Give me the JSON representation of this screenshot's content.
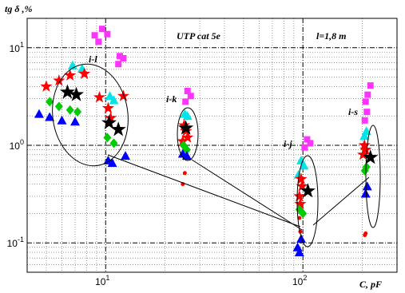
{
  "chart_data": {
    "type": "scatter",
    "ylabel": "tg δ ,%",
    "xlabel": "C, pF",
    "log_x": true,
    "log_y": true,
    "xlim": [
      4,
      300
    ],
    "ylim": [
      0.05,
      20
    ],
    "grid": true,
    "x_tick_labels": [
      {
        "x": 10,
        "base": "10",
        "exp": "1"
      },
      {
        "x": 100,
        "base": "10",
        "exp": "2"
      }
    ],
    "y_tick_labels": [
      {
        "y": 10,
        "base": "10",
        "exp": "1"
      },
      {
        "y": 1,
        "base": "10",
        "exp": "0"
      },
      {
        "y": 0.1,
        "base": "10",
        "exp": "-1"
      }
    ],
    "annotations": {
      "cable": "UTP cat 5e",
      "length": "l=1,8 m",
      "groups": [
        "i-l",
        "i-k",
        "i-j",
        "i-s"
      ]
    },
    "colors": {
      "magenta": "#ff33ff",
      "cyan": "#00e5e5",
      "red": "#ff0000",
      "green": "#00cc00",
      "blue": "#0000ff",
      "black": "#000000"
    },
    "series": [
      {
        "color": "magenta",
        "marker": "square",
        "points": [
          [
            9.6,
            15.6
          ],
          [
            10.2,
            13.8
          ],
          [
            8.8,
            13.4
          ],
          [
            9.2,
            11.5
          ],
          [
            11.8,
            8.2
          ],
          [
            12.3,
            7.8
          ],
          [
            11.6,
            6.8
          ],
          [
            26,
            3.6
          ],
          [
            27,
            3.2
          ],
          [
            25.4,
            2.8
          ],
          [
            105,
            1.15
          ],
          [
            109,
            1.05
          ],
          [
            102,
            0.95
          ],
          [
            220,
            4.1
          ],
          [
            213,
            3.3
          ],
          [
            208,
            2.8
          ],
          [
            211,
            2.2
          ],
          [
            206,
            1.8
          ]
        ]
      },
      {
        "color": "cyan",
        "marker": "triangle",
        "points": [
          [
            6.8,
            6.6
          ],
          [
            7.6,
            6.1
          ],
          [
            10.5,
            3.2
          ],
          [
            11,
            2.9
          ],
          [
            25.2,
            2.1
          ],
          [
            26,
            2.0
          ],
          [
            98,
            0.7
          ],
          [
            101,
            0.62
          ],
          [
            95,
            0.5
          ],
          [
            210,
            1.4
          ],
          [
            205,
            1.25
          ]
        ]
      },
      {
        "color": "red",
        "marker": "star",
        "points": [
          [
            5,
            4.0
          ],
          [
            5.8,
            4.6
          ],
          [
            6.6,
            5.2
          ],
          [
            7.8,
            5.4
          ],
          [
            9.3,
            3.1
          ],
          [
            10.3,
            2.4
          ],
          [
            10.6,
            1.9
          ],
          [
            12.3,
            3.2
          ],
          [
            25,
            1.6
          ],
          [
            25.6,
            1.4
          ],
          [
            26,
            1.2
          ],
          [
            24.6,
            1.1
          ],
          [
            98,
            0.45
          ],
          [
            99,
            0.38
          ],
          [
            96,
            0.3
          ],
          [
            97,
            0.25
          ],
          [
            205,
            1.0
          ],
          [
            208,
            0.9
          ],
          [
            202,
            0.8
          ]
        ]
      },
      {
        "color": "red",
        "marker": "dot",
        "points": [
          [
            25.2,
            0.52
          ],
          [
            24.6,
            0.4
          ],
          [
            96,
            0.18
          ],
          [
            97,
            0.13
          ],
          [
            206,
            0.12
          ],
          [
            208,
            0.125
          ]
        ]
      },
      {
        "color": "green",
        "marker": "diamond",
        "points": [
          [
            5.2,
            2.8
          ],
          [
            5.8,
            2.5
          ],
          [
            6.6,
            2.3
          ],
          [
            7.2,
            2.2
          ],
          [
            10.2,
            1.2
          ],
          [
            11,
            1.05
          ],
          [
            24.8,
            1.0
          ],
          [
            25.8,
            0.9
          ],
          [
            96,
            0.22
          ],
          [
            100,
            0.2
          ],
          [
            210,
            0.6
          ],
          [
            206,
            0.55
          ]
        ]
      },
      {
        "color": "blue",
        "marker": "triangle",
        "points": [
          [
            4.6,
            2.1
          ],
          [
            5.2,
            1.95
          ],
          [
            6,
            1.8
          ],
          [
            7,
            1.75
          ],
          [
            10.3,
            0.7
          ],
          [
            10.8,
            0.66
          ],
          [
            12.6,
            0.78
          ],
          [
            24.6,
            0.82
          ],
          [
            25.8,
            0.78
          ],
          [
            94,
            0.09
          ],
          [
            96,
            0.08
          ],
          [
            98,
            0.11
          ],
          [
            208,
            0.32
          ],
          [
            212,
            0.38
          ]
        ]
      },
      {
        "color": "black",
        "marker": "star",
        "points": [
          [
            6.4,
            3.5
          ],
          [
            7.1,
            3.3
          ],
          [
            10.4,
            1.7
          ],
          [
            11.6,
            1.45
          ],
          [
            25.5,
            1.5
          ],
          [
            106,
            0.34
          ],
          [
            220,
            0.75
          ]
        ]
      }
    ]
  }
}
